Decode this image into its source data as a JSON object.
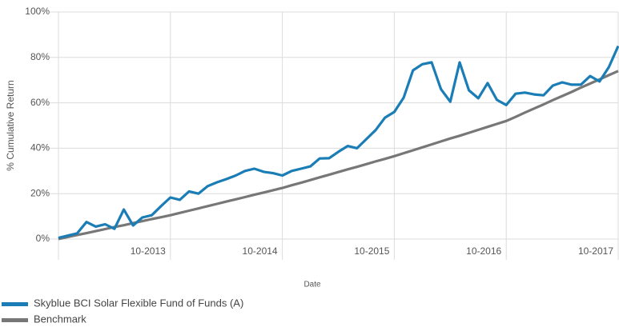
{
  "chart_data": {
    "type": "line",
    "x_label": "Date",
    "y_label": "% Cumulative Return",
    "x": [
      "2012-10",
      "2012-11",
      "2012-12",
      "2013-01",
      "2013-02",
      "2013-03",
      "2013-04",
      "2013-05",
      "2013-06",
      "2013-07",
      "2013-08",
      "2013-09",
      "2013-10",
      "2013-11",
      "2013-12",
      "2014-01",
      "2014-02",
      "2014-03",
      "2014-04",
      "2014-05",
      "2014-06",
      "2014-07",
      "2014-08",
      "2014-09",
      "2014-10",
      "2014-11",
      "2014-12",
      "2015-01",
      "2015-02",
      "2015-03",
      "2015-04",
      "2015-05",
      "2015-06",
      "2015-07",
      "2015-08",
      "2015-09",
      "2015-10",
      "2015-11",
      "2015-12",
      "2016-01",
      "2016-02",
      "2016-03",
      "2016-04",
      "2016-05",
      "2016-06",
      "2016-07",
      "2016-08",
      "2016-09",
      "2016-10",
      "2016-11",
      "2016-12",
      "2017-01",
      "2017-02",
      "2017-03",
      "2017-04",
      "2017-05",
      "2017-06",
      "2017-07",
      "2017-08",
      "2017-09",
      "2017-10"
    ],
    "series": [
      {
        "name": "Skyblue BCI Solar Flexible Fund of Funds (A)",
        "color": "#1a7db5",
        "values": [
          0.5,
          1.5,
          2.5,
          7.5,
          5.5,
          6.5,
          4.5,
          13,
          6,
          9.5,
          10.5,
          14.5,
          18.3,
          17.3,
          21,
          20,
          23.3,
          25,
          26.4,
          28,
          30,
          31,
          29.6,
          29,
          28,
          30,
          31,
          32,
          35.5,
          35.6,
          38.4,
          41,
          40,
          44,
          48,
          53.5,
          56,
          62.3,
          74.3,
          77,
          77.8,
          66,
          60.5,
          77.8,
          65.5,
          62,
          68.7,
          61.3,
          59,
          64,
          64.5,
          63.7,
          63.3,
          67.6,
          69,
          68,
          68,
          71.8,
          69.4,
          75.7,
          85
        ]
      },
      {
        "name": "Benchmark",
        "color": "#777777",
        "values": [
          0,
          0.9,
          1.8,
          2.6,
          3.5,
          4.4,
          5.3,
          6.1,
          7.0,
          7.9,
          8.8,
          9.6,
          10.5,
          11.5,
          12.5,
          13.5,
          14.5,
          15.5,
          16.5,
          17.5,
          18.5,
          19.5,
          20.5,
          21.5,
          22.5,
          23.7,
          24.8,
          26.0,
          27.2,
          28.3,
          29.5,
          30.7,
          31.8,
          33.0,
          34.2,
          35.3,
          36.5,
          37.8,
          39.1,
          40.4,
          41.7,
          43.0,
          44.3,
          45.5,
          46.8,
          48.1,
          49.4,
          50.7,
          52.0,
          53.8,
          55.7,
          57.5,
          59.3,
          61.2,
          63.0,
          64.8,
          66.7,
          68.5,
          70.3,
          72.2,
          74.0
        ]
      }
    ],
    "xlim": [
      "2012-10",
      "2017-10"
    ],
    "xticks": [
      {
        "value": "2013-10",
        "label": "10-2013"
      },
      {
        "value": "2014-10",
        "label": "10-2014"
      },
      {
        "value": "2015-10",
        "label": "10-2015"
      },
      {
        "value": "2016-10",
        "label": "10-2016"
      },
      {
        "value": "2017-10",
        "label": "10-2017"
      }
    ],
    "ylim": [
      0,
      100
    ],
    "yticks": [
      {
        "value": 0,
        "label": "0%"
      },
      {
        "value": 20,
        "label": "20%"
      },
      {
        "value": 40,
        "label": "40%"
      },
      {
        "value": 60,
        "label": "60%"
      },
      {
        "value": 80,
        "label": "80%"
      },
      {
        "value": 100,
        "label": "100%"
      }
    ],
    "grid": true,
    "legend": "bottom-left"
  }
}
